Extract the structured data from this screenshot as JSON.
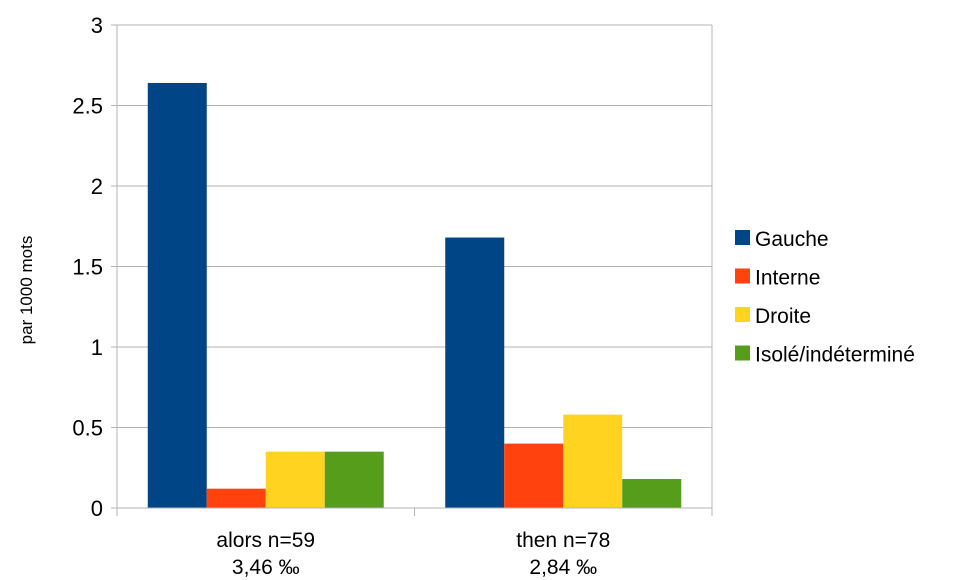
{
  "chart_data": {
    "type": "bar",
    "ylabel": "par 1000 mots",
    "ylim": [
      0,
      3
    ],
    "yticks": [
      "0",
      "0.5",
      "1",
      "1.5",
      "2",
      "2.5",
      "3"
    ],
    "grid": true,
    "legend_position": "right",
    "categories": [
      {
        "line1": "alors n=59",
        "line2": "3,46 ‰"
      },
      {
        "line1": "then n=78",
        "line2": "2,84 ‰"
      }
    ],
    "series": [
      {
        "name": "Gauche",
        "color": "#004586",
        "values": [
          2.64,
          1.68
        ]
      },
      {
        "name": "Interne",
        "color": "#ff420e",
        "values": [
          0.12,
          0.4
        ]
      },
      {
        "name": "Droite",
        "color": "#ffd320",
        "values": [
          0.35,
          0.58
        ]
      },
      {
        "name": "Isolé/indéterminé",
        "color": "#579d1c",
        "values": [
          0.35,
          0.18
        ]
      }
    ]
  }
}
